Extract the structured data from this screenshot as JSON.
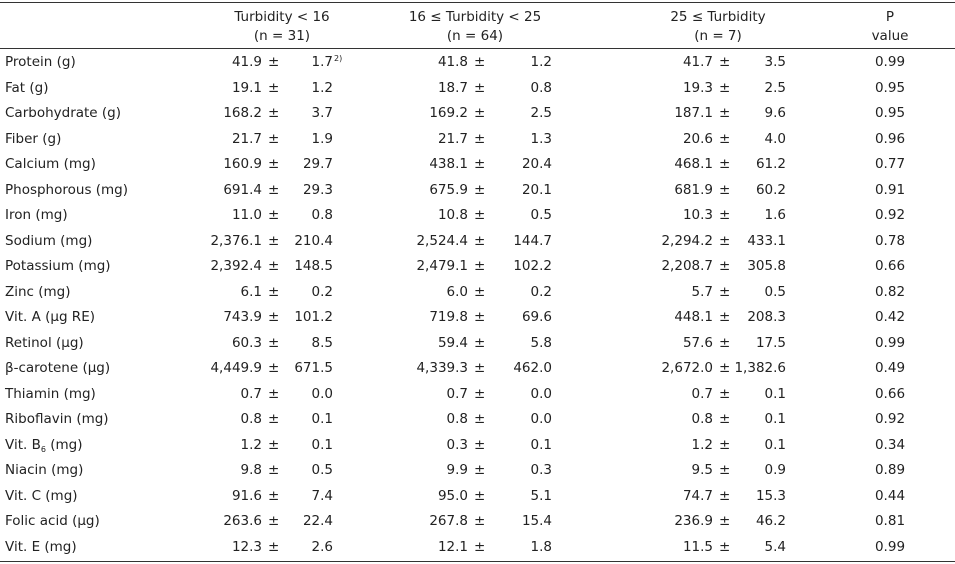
{
  "header": {
    "columns": [
      {
        "line1": "Turbidity < 16",
        "line2": "(n = 31)"
      },
      {
        "line1": "16 ≤ Turbidity < 25",
        "line2": "(n = 64)"
      },
      {
        "line1": "25 ≤ Turbidity",
        "line2": "(n = 7)"
      },
      {
        "line1": "P",
        "line2": "value"
      }
    ]
  },
  "table": {
    "pm": "±",
    "rows": [
      {
        "label": "Protein (g)",
        "values": [
          [
            "41.9",
            "1.7"
          ],
          [
            "41.8",
            "1.2"
          ],
          [
            "41.7",
            "3.5"
          ]
        ],
        "p": "0.99",
        "sd_note": "2)"
      },
      {
        "label": "Fat (g)",
        "values": [
          [
            "19.1",
            "1.2"
          ],
          [
            "18.7",
            "0.8"
          ],
          [
            "19.3",
            "2.5"
          ]
        ],
        "p": "0.95"
      },
      {
        "label": "Carbohydrate (g)",
        "values": [
          [
            "168.2",
            "3.7"
          ],
          [
            "169.2",
            "2.5"
          ],
          [
            "187.1",
            "9.6"
          ]
        ],
        "p": "0.95"
      },
      {
        "label": "Fiber (g)",
        "values": [
          [
            "21.7",
            "1.9"
          ],
          [
            "21.7",
            "1.3"
          ],
          [
            "20.6",
            "4.0"
          ]
        ],
        "p": "0.96"
      },
      {
        "label": "Calcium (mg)",
        "values": [
          [
            "160.9",
            "29.7"
          ],
          [
            "438.1",
            "20.4"
          ],
          [
            "468.1",
            "61.2"
          ]
        ],
        "p": "0.77"
      },
      {
        "label": "Phosphorous (mg)",
        "values": [
          [
            "691.4",
            "29.3"
          ],
          [
            "675.9",
            "20.1"
          ],
          [
            "681.9",
            "60.2"
          ]
        ],
        "p": "0.91"
      },
      {
        "label": "Iron (mg)",
        "values": [
          [
            "11.0",
            "0.8"
          ],
          [
            "10.8",
            "0.5"
          ],
          [
            "10.3",
            "1.6"
          ]
        ],
        "p": "0.92"
      },
      {
        "label": "Sodium (mg)",
        "values": [
          [
            "2,376.1",
            "210.4"
          ],
          [
            "2,524.4",
            "144.7"
          ],
          [
            "2,294.2",
            "433.1"
          ]
        ],
        "p": "0.78"
      },
      {
        "label": "Potassium (mg)",
        "values": [
          [
            "2,392.4",
            "148.5"
          ],
          [
            "2,479.1",
            "102.2"
          ],
          [
            "2,208.7",
            "305.8"
          ]
        ],
        "p": "0.66"
      },
      {
        "label": "Zinc (mg)",
        "values": [
          [
            "6.1",
            "0.2"
          ],
          [
            "6.0",
            "0.2"
          ],
          [
            "5.7",
            "0.5"
          ]
        ],
        "p": "0.82"
      },
      {
        "label": "Vit. A (μg RE)",
        "values": [
          [
            "743.9",
            "101.2"
          ],
          [
            "719.8",
            "69.6"
          ],
          [
            "448.1",
            "208.3"
          ]
        ],
        "p": "0.42"
      },
      {
        "label": "Retinol (μg)",
        "values": [
          [
            "60.3",
            "8.5"
          ],
          [
            "59.4",
            "5.8"
          ],
          [
            "57.6",
            "17.5"
          ]
        ],
        "p": "0.99"
      },
      {
        "label": "β-carotene (μg)",
        "values": [
          [
            "4,449.9",
            "671.5"
          ],
          [
            "4,339.3",
            "462.0"
          ],
          [
            "2,672.0",
            "1,382.6"
          ]
        ],
        "p": "0.49"
      },
      {
        "label": "Thiamin (mg)",
        "values": [
          [
            "0.7",
            "0.0"
          ],
          [
            "0.7",
            "0.0"
          ],
          [
            "0.7",
            "0.1"
          ]
        ],
        "p": "0.66"
      },
      {
        "label": "Riboflavin (mg)",
        "values": [
          [
            "0.8",
            "0.1"
          ],
          [
            "0.8",
            "0.0"
          ],
          [
            "0.8",
            "0.1"
          ]
        ],
        "p": "0.92"
      },
      {
        "label": "Vit. B",
        "label_sub": "6",
        "label_rest": " (mg)",
        "values": [
          [
            "1.2",
            "0.1"
          ],
          [
            "0.3",
            "0.1"
          ],
          [
            "1.2",
            "0.1"
          ]
        ],
        "p": "0.34"
      },
      {
        "label": "Niacin (mg)",
        "values": [
          [
            "9.8",
            "0.5"
          ],
          [
            "9.9",
            "0.3"
          ],
          [
            "9.5",
            "0.9"
          ]
        ],
        "p": "0.89"
      },
      {
        "label": "Vit. C (mg)",
        "values": [
          [
            "91.6",
            "7.4"
          ],
          [
            "95.0",
            "5.1"
          ],
          [
            "74.7",
            "15.3"
          ]
        ],
        "p": "0.44"
      },
      {
        "label": "Folic acid (μg)",
        "values": [
          [
            "263.6",
            "22.4"
          ],
          [
            "267.8",
            "15.4"
          ],
          [
            "236.9",
            "46.2"
          ]
        ],
        "p": "0.81"
      },
      {
        "label": "Vit. E (mg)",
        "values": [
          [
            "12.3",
            "2.6"
          ],
          [
            "12.1",
            "1.8"
          ],
          [
            "11.5",
            "5.4"
          ]
        ],
        "p": "0.99"
      }
    ]
  }
}
